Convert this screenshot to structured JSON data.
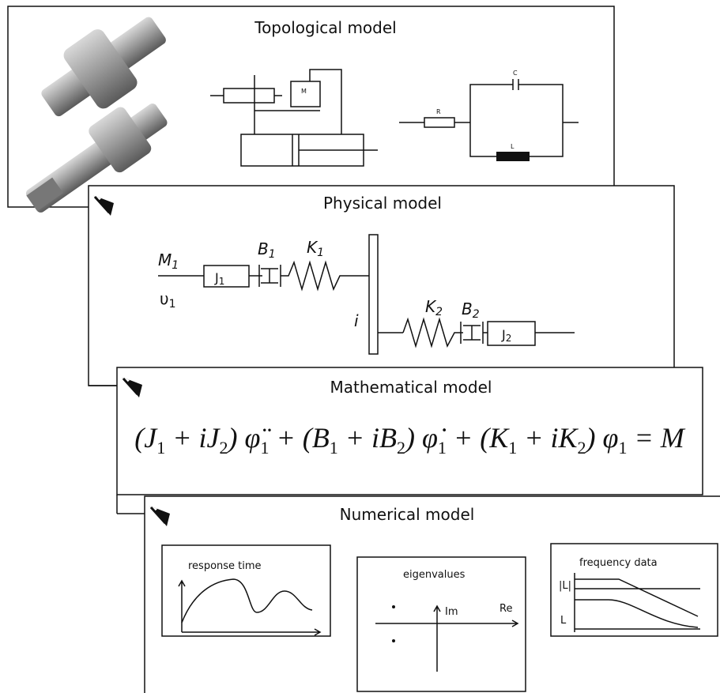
{
  "panels": {
    "topological": {
      "title": "Topological model",
      "labels": {
        "m": "M",
        "r": "R",
        "c": "C",
        "l": "L"
      }
    },
    "physical": {
      "title": "Physical model",
      "labels": {
        "m1": {
          "symbol": "M",
          "index": "1"
        },
        "v1": {
          "symbol": "υ",
          "index": "1"
        },
        "j1": {
          "symbol": "J",
          "index": "1"
        },
        "b1": {
          "symbol": "B",
          "index": "1"
        },
        "k1": {
          "symbol": "K",
          "index": "1"
        },
        "i": "i",
        "k2": {
          "symbol": "K",
          "index": "2"
        },
        "b2": {
          "symbol": "B",
          "index": "2"
        },
        "j2": {
          "symbol": "J",
          "index": "2"
        }
      }
    },
    "mathematical": {
      "title": "Mathematical model",
      "equation": [
        {
          "text": "(J",
          "sub": "1"
        },
        {
          "text": " + iJ",
          "sub": "2"
        },
        {
          "text": ") φ̈",
          "sub": "1"
        },
        {
          "text": " + (B",
          "sub": "1"
        },
        {
          "text": " + iB",
          "sub": "2"
        },
        {
          "text": ") φ̇",
          "sub": "1"
        },
        {
          "text": " + (K",
          "sub": "1"
        },
        {
          "text": " + iK",
          "sub": "2"
        },
        {
          "text": ") φ",
          "sub": "1"
        },
        {
          "text": " = M"
        }
      ]
    },
    "numerical": {
      "title": "Numerical model",
      "plots": {
        "response": {
          "title": "response time"
        },
        "eigen": {
          "title": "eigenvalues",
          "im": "Im",
          "re": "Re"
        },
        "frequency": {
          "title": "frequency data",
          "magnitude": "|L|",
          "phase": "L"
        }
      }
    }
  }
}
